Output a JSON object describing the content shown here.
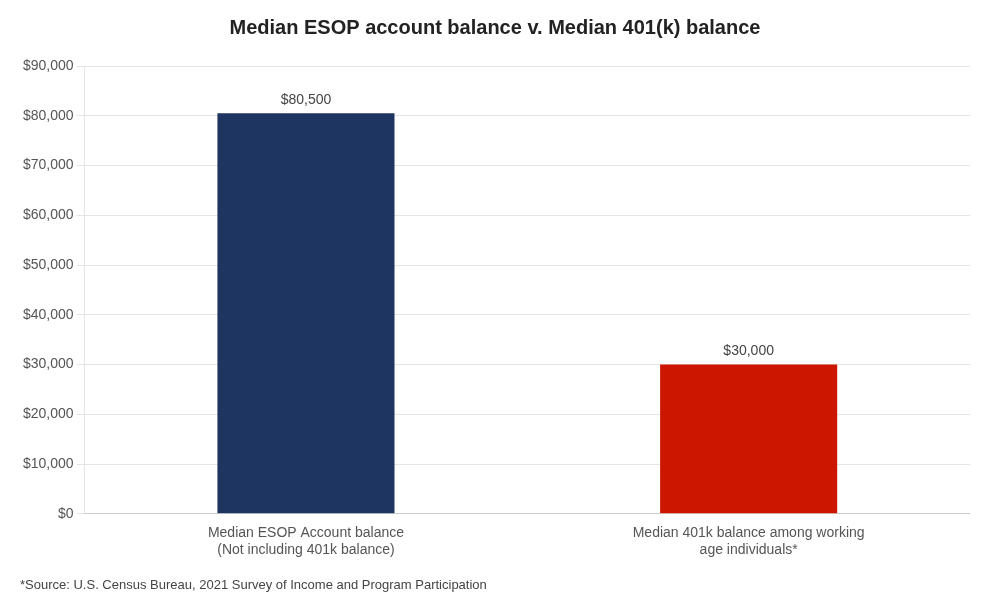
{
  "chart_data": {
    "type": "bar",
    "title": "Median ESOP account balance v. Median 401(k) balance",
    "categories": [
      "Median ESOP Account balance\n(Not including 401k balance)",
      "Median 401k balance among working\nage individuals*"
    ],
    "values": [
      80500,
      30000
    ],
    "value_labels": [
      "$80,500",
      "$30,000"
    ],
    "colors": [
      "#1f3561",
      "#cc1600"
    ],
    "data_labels": true,
    "ylim": [
      0,
      90000
    ],
    "yticks": [
      {
        "value": 0,
        "label": "$0"
      },
      {
        "value": 10000,
        "label": "$10,000"
      },
      {
        "value": 20000,
        "label": "$20,000"
      },
      {
        "value": 30000,
        "label": "$30,000"
      },
      {
        "value": 40000,
        "label": "$40,000"
      },
      {
        "value": 50000,
        "label": "$50,000"
      },
      {
        "value": 60000,
        "label": "$60,000"
      },
      {
        "value": 70000,
        "label": "$70,000"
      },
      {
        "value": 80000,
        "label": "$80,000"
      },
      {
        "value": 90000,
        "label": "$90,000"
      }
    ],
    "grid": true,
    "footnote": "*Source: U.S. Census Bureau, 2021 Survey of Income and Program Participation"
  }
}
